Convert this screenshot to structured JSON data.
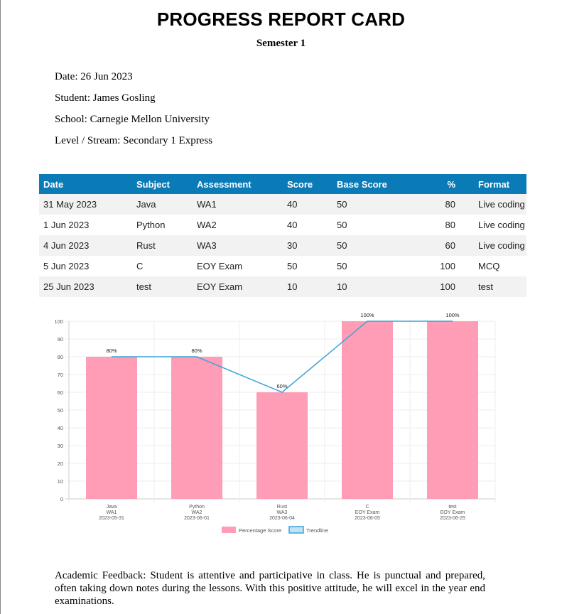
{
  "header": {
    "title": "PROGRESS REPORT CARD",
    "subtitle": "Semester 1"
  },
  "info": {
    "date": "Date: 26 Jun 2023",
    "student": "Student: James Gosling",
    "school": "School: Carnegie Mellon University",
    "level": "Level / Stream: Secondary 1 Express"
  },
  "table": {
    "headers": [
      "Date",
      "Subject",
      "Assessment",
      "Score",
      "Base Score",
      "%",
      "Format"
    ],
    "rows": [
      [
        "31 May 2023",
        "Java",
        "WA1",
        "40",
        "50",
        "80",
        "Live coding"
      ],
      [
        "1 Jun 2023",
        "Python",
        "WA2",
        "40",
        "50",
        "80",
        "Live coding"
      ],
      [
        "4 Jun 2023",
        "Rust",
        "WA3",
        "30",
        "50",
        "60",
        "Live coding"
      ],
      [
        "5 Jun 2023",
        "C",
        "EOY Exam",
        "50",
        "50",
        "100",
        "MCQ"
      ],
      [
        "25 Jun 2023",
        "test",
        "EOY Exam",
        "10",
        "10",
        "100",
        "test"
      ]
    ]
  },
  "chart_data": {
    "type": "bar",
    "categories": [
      [
        "Java",
        "WA1",
        "2023-05-31"
      ],
      [
        "Python",
        "WA2",
        "2023-06-01"
      ],
      [
        "Rust",
        "WA3",
        "2023-06-04"
      ],
      [
        "C",
        "EOY Exam",
        "2023-06-05"
      ],
      [
        "test",
        "EOY Exam",
        "2023-06-25"
      ]
    ],
    "series": [
      {
        "name": "Percentage Score",
        "type": "bar",
        "values": [
          80,
          80,
          60,
          100,
          100
        ],
        "color": "#ff9db6"
      },
      {
        "name": "Trendline",
        "type": "line",
        "values": [
          80,
          80,
          60,
          100,
          100
        ],
        "color": "#3aa3d6"
      }
    ],
    "data_labels": [
      "80%",
      "80%",
      "60%",
      "100%",
      "100%"
    ],
    "ylim": [
      0,
      100
    ],
    "yticks": [
      0,
      10,
      20,
      30,
      40,
      50,
      60,
      70,
      80,
      90,
      100
    ],
    "grid": true,
    "legend_position": "bottom"
  },
  "feedback": "Academic Feedback: Student is attentive and participative in class. He is punctual and prepared, often taking down notes during the lessons. With this positive attitude, he will excel in the year end examinations."
}
